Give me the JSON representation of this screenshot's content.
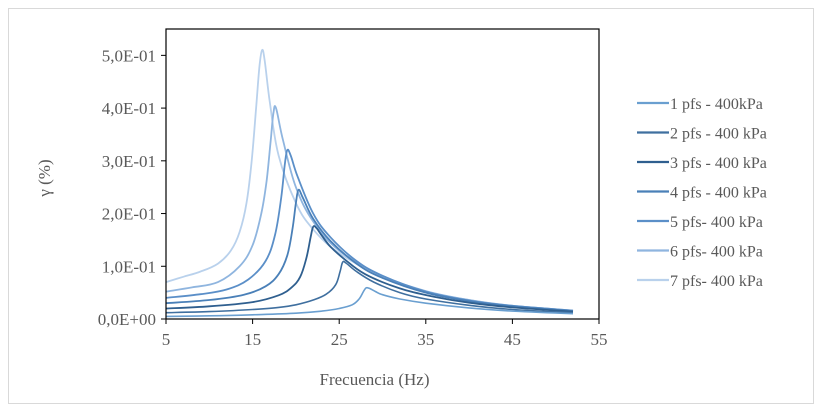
{
  "chart_data": {
    "type": "line",
    "title": "",
    "xlabel": "Frecuencia (Hz)",
    "ylabel": "γ (%)",
    "xlim": [
      5,
      55
    ],
    "ylim": [
      0,
      0.55
    ],
    "x_ticks": [
      5,
      15,
      25,
      35,
      45,
      55
    ],
    "x_tick_labels": [
      "5",
      "15",
      "25",
      "35",
      "45",
      "55"
    ],
    "y_ticks": [
      0,
      0.1,
      0.2,
      0.3,
      0.4,
      0.5
    ],
    "y_tick_labels": [
      "0,0E+00",
      "1,0E-01",
      "2,0E-01",
      "3,0E-01",
      "4,0E-01",
      "5,0E-01"
    ],
    "grid": "none",
    "legend_position": "right",
    "series": [
      {
        "name": "1 pfs - 400kPa",
        "color": "#6a9fd0",
        "width": 1.6,
        "x": [
          5,
          10,
          15,
          20,
          23,
          25,
          26.5,
          27.3,
          27.8,
          28.1,
          28.5,
          29.2,
          30,
          32,
          35,
          40,
          45,
          52
        ],
        "y": [
          0.005,
          0.006,
          0.008,
          0.011,
          0.015,
          0.02,
          0.027,
          0.038,
          0.052,
          0.059,
          0.058,
          0.052,
          0.046,
          0.038,
          0.03,
          0.021,
          0.015,
          0.01
        ]
      },
      {
        "name": "2 pfs - 400 kPa",
        "color": "#3f6f9f",
        "width": 1.6,
        "x": [
          5,
          10,
          15,
          18,
          20,
          22,
          23.5,
          24.6,
          25.1,
          25.4,
          25.8,
          27,
          29,
          32,
          35,
          40,
          45,
          52
        ],
        "y": [
          0.012,
          0.014,
          0.018,
          0.022,
          0.027,
          0.036,
          0.047,
          0.065,
          0.09,
          0.108,
          0.106,
          0.09,
          0.07,
          0.05,
          0.038,
          0.026,
          0.018,
          0.012
        ]
      },
      {
        "name": "3 pfs - 400 kPa",
        "color": "#2f5f8f",
        "width": 1.8,
        "x": [
          5,
          10,
          15,
          18,
          19.5,
          20.5,
          21.2,
          21.7,
          22,
          22.4,
          23,
          24,
          25.5,
          28,
          32,
          36,
          40,
          45,
          52
        ],
        "y": [
          0.02,
          0.024,
          0.032,
          0.045,
          0.06,
          0.08,
          0.115,
          0.155,
          0.175,
          0.172,
          0.158,
          0.137,
          0.115,
          0.085,
          0.058,
          0.042,
          0.031,
          0.022,
          0.014
        ]
      },
      {
        "name": "4 pfs - 400 kPa",
        "color": "#4a80b8",
        "width": 1.8,
        "x": [
          5,
          10,
          14,
          16.5,
          18,
          19,
          19.6,
          20,
          20.3,
          20.8,
          22,
          24,
          27,
          30,
          35,
          40,
          45,
          52
        ],
        "y": [
          0.03,
          0.036,
          0.046,
          0.062,
          0.085,
          0.12,
          0.17,
          0.22,
          0.245,
          0.23,
          0.19,
          0.148,
          0.105,
          0.078,
          0.05,
          0.034,
          0.024,
          0.015
        ]
      },
      {
        "name": "5 pfs- 400 kPa",
        "color": "#5b8fc8",
        "width": 1.8,
        "x": [
          5,
          9,
          12,
          14.5,
          16.5,
          17.6,
          18.3,
          18.7,
          19,
          19.4,
          20.2,
          22,
          24,
          27,
          30,
          35,
          40,
          45,
          52
        ],
        "y": [
          0.04,
          0.047,
          0.056,
          0.075,
          0.11,
          0.16,
          0.23,
          0.29,
          0.32,
          0.31,
          0.27,
          0.2,
          0.155,
          0.11,
          0.082,
          0.052,
          0.035,
          0.025,
          0.016
        ]
      },
      {
        "name": "6 pfs- 400 kPa",
        "color": "#8fb5df",
        "width": 1.8,
        "x": [
          5,
          8,
          11,
          13.5,
          15,
          16,
          16.6,
          17.1,
          17.4,
          17.7,
          18.5,
          20,
          22,
          25,
          30,
          35,
          40,
          45,
          52
        ],
        "y": [
          0.052,
          0.06,
          0.07,
          0.1,
          0.14,
          0.2,
          0.26,
          0.34,
          0.39,
          0.4,
          0.34,
          0.25,
          0.185,
          0.13,
          0.082,
          0.053,
          0.036,
          0.025,
          0.016
        ]
      },
      {
        "name": "7 pfs- 400 kPa",
        "color": "#b9d1ec",
        "width": 1.8,
        "x": [
          5,
          7,
          9,
          11,
          12.5,
          13.5,
          14.3,
          14.9,
          15.4,
          15.8,
          16.1,
          16.4,
          17,
          18,
          20,
          22,
          25,
          30,
          35,
          40,
          45,
          52
        ],
        "y": [
          0.07,
          0.08,
          0.09,
          0.105,
          0.13,
          0.165,
          0.22,
          0.3,
          0.4,
          0.48,
          0.51,
          0.49,
          0.41,
          0.31,
          0.22,
          0.17,
          0.125,
          0.08,
          0.052,
          0.036,
          0.025,
          0.016
        ]
      }
    ]
  }
}
